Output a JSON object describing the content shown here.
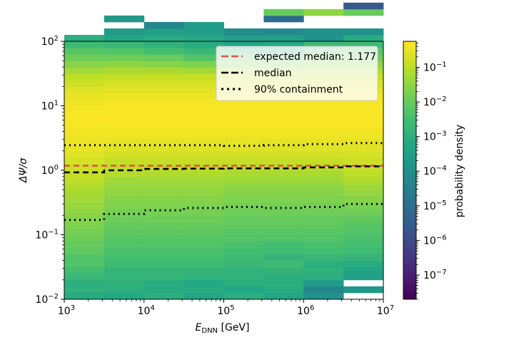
{
  "chart_data": {
    "type": "heatmap",
    "title": "",
    "xlabel": "E_DNN [GeV]",
    "xlabel_main": "E",
    "xlabel_sub": "DNN",
    "xlabel_unit": " [GeV]",
    "ylabel": "ΔΨ/σ",
    "xscale": "log",
    "yscale": "log",
    "xlim": [
      1000,
      10000000
    ],
    "ylim": [
      0.01,
      100
    ],
    "x_ticks": [
      {
        "value": 1000,
        "base": "10",
        "exp": "3"
      },
      {
        "value": 10000,
        "base": "10",
        "exp": "4"
      },
      {
        "value": 100000,
        "base": "10",
        "exp": "5"
      },
      {
        "value": 1000000,
        "base": "10",
        "exp": "6"
      },
      {
        "value": 10000000,
        "base": "10",
        "exp": "7"
      }
    ],
    "y_ticks": [
      {
        "value": 0.01,
        "base": "10",
        "exp": "−2"
      },
      {
        "value": 0.1,
        "base": "10",
        "exp": "−1"
      },
      {
        "value": 1,
        "base": "10",
        "exp": "0"
      },
      {
        "value": 10,
        "base": "10",
        "exp": "1"
      },
      {
        "value": 100,
        "base": "10",
        "exp": "2"
      }
    ],
    "x_bin_edges_log10": [
      3.0,
      3.5,
      4.0,
      4.5,
      5.0,
      5.5,
      6.0,
      6.5,
      7.0
    ],
    "y_bin_width_log10": 0.1,
    "y_bin_start_log10": -2.0,
    "density_log10_columns": [
      [
        -3.1,
        -2.9,
        -3.0,
        -2.7,
        -2.5,
        -2.3,
        -2.3,
        -2.1,
        -2.0,
        -1.9,
        -1.8,
        -1.7,
        -1.6,
        -1.5,
        -1.4,
        -1.3,
        -1.2,
        -1.1,
        -1.0,
        -0.9,
        -0.8,
        -0.7,
        -0.6,
        -0.5,
        -0.45,
        -0.4,
        -0.35,
        -0.3,
        -0.3,
        -0.35,
        -0.4,
        -0.5,
        -0.6,
        -0.8,
        -1.0,
        -1.3,
        -1.6,
        -1.9,
        -2.2,
        -2.6,
        -3.0,
        null,
        null,
        null,
        null,
        null,
        null,
        null,
        null,
        null
      ],
      [
        -3.2,
        -3.0,
        -2.9,
        -2.8,
        -2.8,
        -2.6,
        -2.5,
        -2.4,
        -2.3,
        -2.2,
        -2.1,
        -2.0,
        -1.9,
        -1.8,
        -1.7,
        -1.6,
        -1.5,
        -1.4,
        -1.3,
        -1.1,
        -1.0,
        -0.9,
        -0.75,
        -0.6,
        -0.5,
        -0.4,
        -0.35,
        -0.3,
        -0.28,
        -0.3,
        -0.35,
        -0.45,
        -0.55,
        -0.7,
        -0.9,
        -1.2,
        -1.5,
        -1.9,
        -2.3,
        -2.7,
        -3.3,
        -3.6,
        null,
        -3.7,
        null,
        null,
        null,
        null,
        null,
        null
      ],
      [
        -3.0,
        -3.1,
        -3.1,
        -2.8,
        -2.8,
        -2.6,
        -2.5,
        -2.4,
        -2.3,
        -2.2,
        -2.1,
        -2.0,
        -1.9,
        -1.8,
        -1.7,
        -1.6,
        -1.5,
        -1.4,
        -1.3,
        -1.15,
        -1.0,
        -0.9,
        -0.75,
        -0.6,
        -0.5,
        -0.4,
        -0.35,
        -0.3,
        -0.28,
        -0.3,
        -0.35,
        -0.45,
        -0.55,
        -0.7,
        -0.9,
        -1.2,
        -1.6,
        -2.0,
        -2.5,
        -2.9,
        -3.1,
        -3.5,
        -4.3,
        null,
        null,
        null,
        null,
        null,
        null,
        null
      ],
      [
        -3.3,
        -3.1,
        -3.2,
        -2.9,
        -2.8,
        -2.6,
        -2.5,
        -2.4,
        -2.3,
        -2.2,
        -2.1,
        -2.0,
        -1.9,
        -1.8,
        -1.7,
        -1.6,
        -1.5,
        -1.4,
        -1.3,
        -1.15,
        -1.0,
        -0.9,
        -0.75,
        -0.6,
        -0.5,
        -0.4,
        -0.35,
        -0.3,
        -0.28,
        -0.3,
        -0.35,
        -0.45,
        -0.55,
        -0.7,
        -0.9,
        -1.3,
        -1.7,
        -2.3,
        -2.7,
        -3.1,
        -3.2,
        -3.6,
        -3.6,
        null,
        null,
        null,
        null,
        null,
        null,
        null
      ],
      [
        -3.0,
        -3.3,
        -3.0,
        -2.9,
        -2.9,
        -2.7,
        -2.6,
        -2.5,
        -2.4,
        -2.3,
        -2.2,
        -2.1,
        -2.0,
        -1.9,
        -1.8,
        -1.7,
        -1.6,
        -1.5,
        -1.35,
        -1.2,
        -1.05,
        -0.9,
        -0.75,
        -0.6,
        -0.5,
        -0.4,
        -0.35,
        -0.3,
        -0.28,
        -0.3,
        -0.35,
        -0.45,
        -0.55,
        -0.7,
        -0.9,
        -1.3,
        -1.7,
        -2.2,
        -2.8,
        -3.3,
        -3.5,
        -4.1,
        null,
        null,
        null,
        null,
        null,
        null,
        null,
        null
      ],
      [
        -3.3,
        -3.1,
        -3.0,
        -3.0,
        -2.8,
        -2.6,
        -2.8,
        -2.6,
        -2.5,
        -2.3,
        -2.2,
        -2.1,
        -2.0,
        -1.9,
        -1.8,
        -1.7,
        -1.6,
        -1.5,
        -1.35,
        -1.2,
        -1.05,
        -0.9,
        -0.75,
        -0.6,
        -0.5,
        -0.4,
        -0.35,
        -0.3,
        -0.28,
        -0.3,
        -0.35,
        -0.45,
        -0.55,
        -0.7,
        -0.9,
        -1.3,
        -1.7,
        -2.3,
        -2.9,
        -3.2,
        -3.5,
        -4.2,
        null,
        -5.1,
        -2.0,
        null,
        null,
        null,
        null,
        null
      ],
      [
        -3.9,
        -4.3,
        -3.6,
        -3.0,
        -2.9,
        -3.0,
        -2.7,
        -2.5,
        -2.4,
        -2.3,
        -2.2,
        -2.1,
        -2.0,
        -1.9,
        -1.8,
        -1.7,
        -1.6,
        -1.5,
        -1.35,
        -1.2,
        -1.05,
        -0.9,
        -0.75,
        -0.6,
        -0.5,
        -0.4,
        -0.35,
        -0.3,
        -0.28,
        -0.3,
        -0.35,
        -0.45,
        -0.55,
        -0.7,
        -0.9,
        -1.2,
        -1.5,
        -1.9,
        -2.2,
        -2.6,
        -3.9,
        -3.9,
        null,
        null,
        -1.5,
        null,
        null,
        null,
        null,
        null
      ],
      [
        null,
        -3.7,
        null,
        -3.5,
        -3.3,
        -3.1,
        -2.8,
        -2.6,
        -2.5,
        -2.4,
        -2.3,
        -2.2,
        -2.05,
        -1.9,
        -1.75,
        -1.6,
        -1.45,
        -1.3,
        -1.15,
        -1.0,
        -0.9,
        -0.8,
        -0.7,
        -0.6,
        -0.5,
        -0.42,
        -0.36,
        -0.3,
        -0.28,
        -0.3,
        -0.35,
        -0.45,
        -0.55,
        -0.7,
        -0.9,
        -1.2,
        -1.5,
        -1.9,
        -2.2,
        -2.6,
        -3.1,
        -3.9,
        null,
        null,
        -2.0,
        -5.6,
        null,
        null,
        null,
        null
      ]
    ],
    "series": [
      {
        "name": "expected median: 1.177",
        "style": "dashed",
        "color": "#e0553f",
        "x": [
          1000,
          10000000
        ],
        "y": [
          1.177,
          1.177
        ]
      },
      {
        "name": "median",
        "style": "dashed",
        "color": "#000000",
        "x_bin_edges": [
          1000,
          3162,
          10000,
          31623,
          100000,
          316228,
          1000000,
          3162278,
          10000000
        ],
        "y": [
          0.93,
          1.0,
          1.05,
          1.06,
          1.07,
          1.07,
          1.11,
          1.15
        ]
      },
      {
        "name": "90% containment",
        "style": "dotted",
        "color": "#000000",
        "x_bin_edges": [
          1000,
          3162,
          10000,
          31623,
          100000,
          316228,
          1000000,
          3162278,
          10000000
        ],
        "y_upper": [
          2.45,
          2.45,
          2.45,
          2.45,
          2.4,
          2.45,
          2.55,
          2.65
        ],
        "y_lower": [
          0.17,
          0.21,
          0.24,
          0.26,
          0.27,
          0.26,
          0.27,
          0.3
        ]
      }
    ],
    "legend": {
      "placement": "top-right",
      "entries": [
        {
          "label": "expected median: 1.177",
          "style": "dashed",
          "color": "#e0553f"
        },
        {
          "label": "median",
          "style": "dashed",
          "color": "#000000"
        },
        {
          "label": "90% containment",
          "style": "dotted",
          "color": "#000000"
        }
      ]
    },
    "colorbar": {
      "label": "probability density",
      "scale": "log",
      "colormap": "viridis",
      "range_log10": [
        -7.7,
        -0.25
      ],
      "ticks": [
        {
          "value": 0.1,
          "base": "10",
          "exp": "−1"
        },
        {
          "value": 0.01,
          "base": "10",
          "exp": "−2"
        },
        {
          "value": 0.001,
          "base": "10",
          "exp": "−3"
        },
        {
          "value": 0.0001,
          "base": "10",
          "exp": "−4"
        },
        {
          "value": 1e-05,
          "base": "10",
          "exp": "−5"
        },
        {
          "value": 1e-06,
          "base": "10",
          "exp": "−6"
        },
        {
          "value": 1e-07,
          "base": "10",
          "exp": "−7"
        }
      ]
    }
  }
}
